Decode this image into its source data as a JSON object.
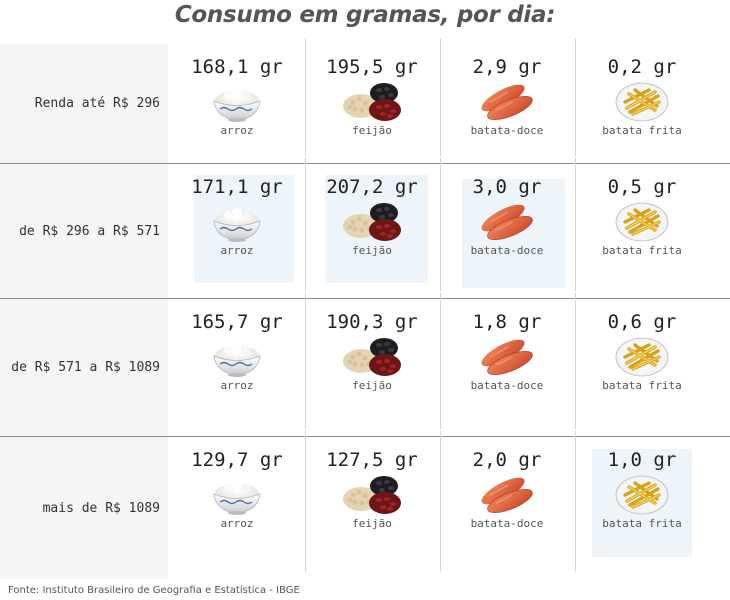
{
  "title": "Consumo em gramas, por dia:",
  "source": "Fonte: Instituto Brasileiro de Geografia e Estatística - IBGE",
  "icons": [
    "rice-bowl-icon",
    "beans-icon",
    "sweet-potato-icon",
    "french-fries-icon"
  ],
  "colors": {
    "highlight": "#edf5fb",
    "label_bg": "#f5f5f5",
    "separator": "#8a8a8a"
  },
  "chart_data": {
    "type": "table",
    "title": "Consumo em gramas, por dia:",
    "columns": [
      "arroz",
      "feijão",
      "batata-doce",
      "batata frita"
    ],
    "rows": [
      {
        "label": "Renda até R$ 296",
        "values": [
          "168,1 gr",
          "195,5 gr",
          "2,9 gr",
          "0,2 gr"
        ],
        "highlight": [
          false,
          false,
          false,
          false
        ]
      },
      {
        "label": "de R$ 296 a R$ 571",
        "values": [
          "171,1 gr",
          "207,2 gr",
          "3,0 gr",
          "0,5 gr"
        ],
        "highlight": [
          true,
          true,
          true,
          false
        ]
      },
      {
        "label": "de R$ 571 a R$ 1089",
        "values": [
          "165,7 gr",
          "190,3 gr",
          "1,8 gr",
          "0,6 gr"
        ],
        "highlight": [
          false,
          false,
          false,
          false
        ]
      },
      {
        "label": "mais de R$ 1089",
        "values": [
          "129,7 gr",
          "127,5 gr",
          "2,0 gr",
          "1,0 gr"
        ],
        "highlight": [
          false,
          false,
          false,
          true
        ]
      }
    ]
  }
}
